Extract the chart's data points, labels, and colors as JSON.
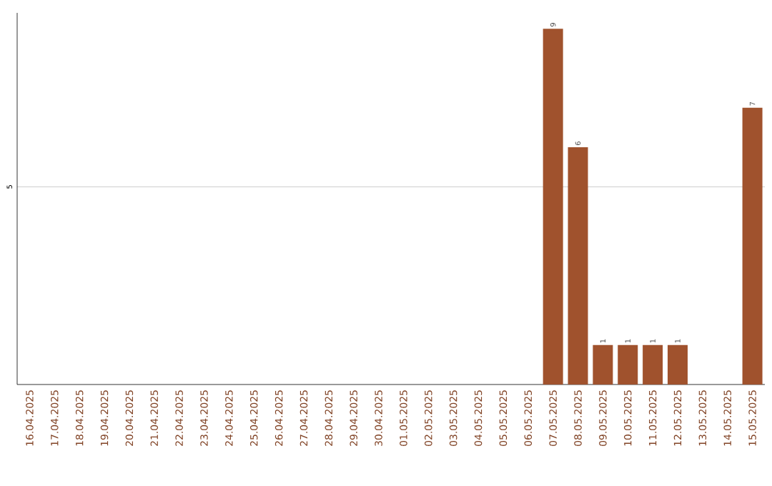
{
  "chart_data": {
    "type": "bar",
    "categories": [
      "16.04.2025",
      "17.04.2025",
      "18.04.2025",
      "19.04.2025",
      "20.04.2025",
      "21.04.2025",
      "22.04.2025",
      "23.04.2025",
      "24.04.2025",
      "25.04.2025",
      "26.04.2025",
      "27.04.2025",
      "28.04.2025",
      "29.04.2025",
      "30.04.2025",
      "01.05.2025",
      "02.05.2025",
      "03.05.2025",
      "04.05.2025",
      "05.05.2025",
      "06.05.2025",
      "07.05.2025",
      "08.05.2025",
      "09.05.2025",
      "10.05.2025",
      "11.05.2025",
      "12.05.2025",
      "13.05.2025",
      "14.05.2025",
      "15.05.2025"
    ],
    "values": [
      null,
      null,
      null,
      null,
      null,
      null,
      null,
      null,
      null,
      null,
      null,
      null,
      null,
      null,
      null,
      null,
      null,
      null,
      null,
      null,
      null,
      9,
      6,
      1,
      1,
      1,
      1,
      null,
      null,
      7
    ],
    "color": "#a0522d",
    "ylim": [
      0,
      9.4
    ],
    "yticks": [
      5
    ],
    "grid": "y",
    "data_labels": true
  }
}
